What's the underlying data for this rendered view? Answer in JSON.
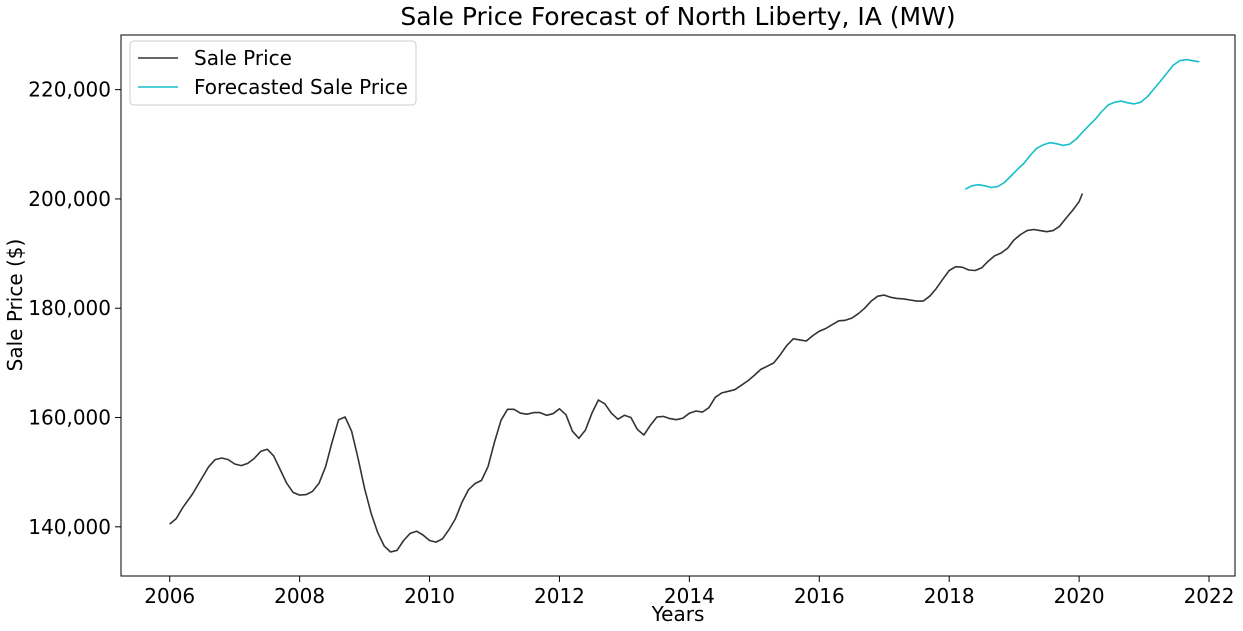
{
  "chart_data": {
    "type": "line",
    "title": "Sale Price Forecast of North Liberty, IA (MW)",
    "xlabel": "Years",
    "ylabel": "Sale Price ($)",
    "xlim": [
      2005.25,
      2022.4
    ],
    "ylim": [
      131000,
      230000
    ],
    "x_ticks": [
      2006,
      2008,
      2010,
      2012,
      2014,
      2016,
      2018,
      2020,
      2022
    ],
    "x_tick_labels": [
      "2006",
      "2008",
      "2010",
      "2012",
      "2014",
      "2016",
      "2018",
      "2020",
      "2022"
    ],
    "y_ticks": [
      140000,
      160000,
      180000,
      200000,
      220000
    ],
    "y_tick_labels": [
      "140,000",
      "160,000",
      "180,000",
      "200,000",
      "220,000"
    ],
    "grid": false,
    "legend": {
      "position": "top-left"
    },
    "series": [
      {
        "name": "Sale Price",
        "color": "#333333",
        "points": [
          [
            2006.0,
            140500
          ],
          [
            2006.1,
            141500
          ],
          [
            2006.2,
            143500
          ],
          [
            2006.35,
            146000
          ],
          [
            2006.5,
            149000
          ],
          [
            2006.6,
            151000
          ],
          [
            2006.7,
            152300
          ],
          [
            2006.8,
            152600
          ],
          [
            2006.9,
            152300
          ],
          [
            2007.0,
            151500
          ],
          [
            2007.1,
            151200
          ],
          [
            2007.2,
            151600
          ],
          [
            2007.3,
            152500
          ],
          [
            2007.4,
            153800
          ],
          [
            2007.5,
            154200
          ],
          [
            2007.6,
            153000
          ],
          [
            2007.7,
            150500
          ],
          [
            2007.8,
            148000
          ],
          [
            2007.9,
            146300
          ],
          [
            2008.0,
            145800
          ],
          [
            2008.1,
            145900
          ],
          [
            2008.2,
            146500
          ],
          [
            2008.3,
            148000
          ],
          [
            2008.4,
            151000
          ],
          [
            2008.5,
            155500
          ],
          [
            2008.6,
            159600
          ],
          [
            2008.7,
            160100
          ],
          [
            2008.8,
            157500
          ],
          [
            2008.9,
            152500
          ],
          [
            2009.0,
            147000
          ],
          [
            2009.1,
            142500
          ],
          [
            2009.2,
            139000
          ],
          [
            2009.3,
            136500
          ],
          [
            2009.4,
            135400
          ],
          [
            2009.5,
            135700
          ],
          [
            2009.6,
            137500
          ],
          [
            2009.7,
            138800
          ],
          [
            2009.8,
            139200
          ],
          [
            2009.9,
            138500
          ],
          [
            2010.0,
            137500
          ],
          [
            2010.1,
            137200
          ],
          [
            2010.2,
            137800
          ],
          [
            2010.3,
            139500
          ],
          [
            2010.4,
            141500
          ],
          [
            2010.5,
            144500
          ],
          [
            2010.6,
            146800
          ],
          [
            2010.7,
            147900
          ],
          [
            2010.8,
            148500
          ],
          [
            2010.9,
            151000
          ],
          [
            2011.0,
            155500
          ],
          [
            2011.1,
            159500
          ],
          [
            2011.2,
            161500
          ],
          [
            2011.3,
            161500
          ],
          [
            2011.4,
            160800
          ],
          [
            2011.5,
            160600
          ],
          [
            2011.6,
            160900
          ],
          [
            2011.7,
            160900
          ],
          [
            2011.8,
            160400
          ],
          [
            2011.9,
            160700
          ],
          [
            2012.0,
            161600
          ],
          [
            2012.1,
            160500
          ],
          [
            2012.2,
            157500
          ],
          [
            2012.3,
            156200
          ],
          [
            2012.4,
            157700
          ],
          [
            2012.5,
            160800
          ],
          [
            2012.6,
            163200
          ],
          [
            2012.7,
            162500
          ],
          [
            2012.8,
            160800
          ],
          [
            2012.9,
            159700
          ],
          [
            2013.0,
            160400
          ],
          [
            2013.1,
            160000
          ],
          [
            2013.2,
            157800
          ],
          [
            2013.3,
            156800
          ],
          [
            2013.4,
            158600
          ],
          [
            2013.5,
            160100
          ],
          [
            2013.6,
            160200
          ],
          [
            2013.7,
            159800
          ],
          [
            2013.8,
            159600
          ],
          [
            2013.9,
            159900
          ],
          [
            2014.0,
            160800
          ],
          [
            2014.1,
            161200
          ],
          [
            2014.2,
            161000
          ],
          [
            2014.3,
            161800
          ],
          [
            2014.4,
            163700
          ],
          [
            2014.5,
            164500
          ],
          [
            2014.6,
            164800
          ],
          [
            2014.7,
            165100
          ],
          [
            2014.8,
            165900
          ],
          [
            2014.9,
            166700
          ],
          [
            2015.0,
            167700
          ],
          [
            2015.1,
            168800
          ],
          [
            2015.2,
            169400
          ],
          [
            2015.3,
            170000
          ],
          [
            2015.4,
            171500
          ],
          [
            2015.5,
            173200
          ],
          [
            2015.6,
            174400
          ],
          [
            2015.7,
            174200
          ],
          [
            2015.8,
            174000
          ],
          [
            2015.9,
            175000
          ],
          [
            2016.0,
            175800
          ],
          [
            2016.1,
            176300
          ],
          [
            2016.2,
            177000
          ],
          [
            2016.3,
            177700
          ],
          [
            2016.4,
            177800
          ],
          [
            2016.5,
            178200
          ],
          [
            2016.6,
            179000
          ],
          [
            2016.7,
            180000
          ],
          [
            2016.8,
            181300
          ],
          [
            2016.9,
            182200
          ],
          [
            2017.0,
            182400
          ],
          [
            2017.1,
            182000
          ],
          [
            2017.2,
            181800
          ],
          [
            2017.3,
            181700
          ],
          [
            2017.4,
            181500
          ],
          [
            2017.5,
            181300
          ],
          [
            2017.6,
            181300
          ],
          [
            2017.7,
            182200
          ],
          [
            2017.8,
            183600
          ],
          [
            2017.9,
            185300
          ],
          [
            2018.0,
            186900
          ],
          [
            2018.1,
            187600
          ],
          [
            2018.2,
            187500
          ],
          [
            2018.3,
            187000
          ],
          [
            2018.4,
            186900
          ],
          [
            2018.5,
            187400
          ],
          [
            2018.6,
            188600
          ],
          [
            2018.7,
            189600
          ],
          [
            2018.8,
            190100
          ],
          [
            2018.9,
            191000
          ],
          [
            2019.0,
            192500
          ],
          [
            2019.1,
            193500
          ],
          [
            2019.2,
            194200
          ],
          [
            2019.3,
            194400
          ],
          [
            2019.4,
            194200
          ],
          [
            2019.5,
            194000
          ],
          [
            2019.6,
            194200
          ],
          [
            2019.7,
            195000
          ],
          [
            2019.8,
            196500
          ],
          [
            2019.9,
            197900
          ],
          [
            2020.0,
            199500
          ],
          [
            2020.05,
            201000
          ]
        ]
      },
      {
        "name": "Forecasted Sale Price",
        "color": "#17bfc8",
        "points": [
          [
            2018.25,
            201800
          ],
          [
            2018.35,
            202400
          ],
          [
            2018.45,
            202600
          ],
          [
            2018.55,
            202400
          ],
          [
            2018.65,
            202100
          ],
          [
            2018.75,
            202300
          ],
          [
            2018.85,
            203000
          ],
          [
            2018.95,
            204200
          ],
          [
            2019.05,
            205400
          ],
          [
            2019.15,
            206500
          ],
          [
            2019.25,
            208000
          ],
          [
            2019.35,
            209300
          ],
          [
            2019.45,
            209900
          ],
          [
            2019.55,
            210300
          ],
          [
            2019.65,
            210100
          ],
          [
            2019.75,
            209800
          ],
          [
            2019.85,
            210000
          ],
          [
            2019.95,
            210900
          ],
          [
            2020.05,
            212200
          ],
          [
            2020.15,
            213400
          ],
          [
            2020.25,
            214600
          ],
          [
            2020.35,
            216000
          ],
          [
            2020.45,
            217200
          ],
          [
            2020.55,
            217700
          ],
          [
            2020.65,
            217900
          ],
          [
            2020.75,
            217600
          ],
          [
            2020.85,
            217400
          ],
          [
            2020.95,
            217700
          ],
          [
            2021.05,
            218700
          ],
          [
            2021.15,
            220100
          ],
          [
            2021.25,
            221500
          ],
          [
            2021.35,
            223000
          ],
          [
            2021.45,
            224500
          ],
          [
            2021.55,
            225300
          ],
          [
            2021.65,
            225500
          ],
          [
            2021.75,
            225300
          ],
          [
            2021.85,
            225100
          ]
        ]
      }
    ]
  }
}
